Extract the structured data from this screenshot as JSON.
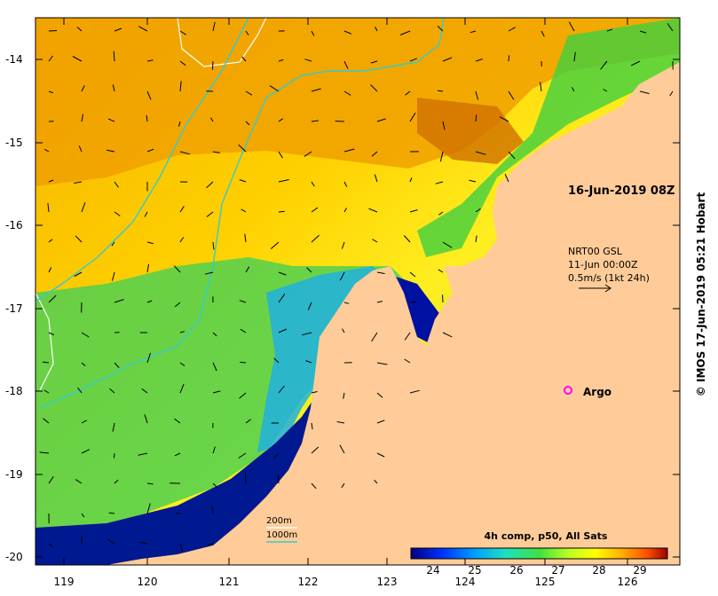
{
  "map": {
    "timestamp": "16-Jun-2019 08Z",
    "vector_legend": {
      "line1": "NRT00 GSL",
      "line2": "11-Jun 00:00Z",
      "line3": "0.5m/s (1kt 24h)"
    },
    "argo_label": "Argo",
    "depth_contours": {
      "label_200": "200m",
      "label_1000": "1000m",
      "color_200": "#ffffff",
      "color_1000": "#33cccc"
    },
    "credit": "© IMOS 17-Jun-2019 05:21 Hobart",
    "lat_ticks": [
      "-14",
      "-15",
      "-16",
      "-17",
      "-18",
      "-19",
      "-20"
    ],
    "lon_ticks": [
      "119",
      "120",
      "121",
      "122",
      "123",
      "124",
      "125",
      "126"
    ],
    "colorbar": {
      "title": "4h comp, p50, All Sats",
      "ticks": [
        "24",
        "25",
        "26",
        "27",
        "28",
        "29"
      ],
      "colors": [
        "#00007f",
        "#0040ff",
        "#00c0ff",
        "#20e0a0",
        "#80ff40",
        "#ffff00",
        "#ffc000",
        "#ff8000",
        "#e04000",
        "#a00000"
      ]
    },
    "land_color": "#ffcc99",
    "argo_color": "#ff00ff"
  },
  "chart_data": {
    "type": "heatmap",
    "title": "",
    "xlabel": "",
    "ylabel": "",
    "xlim": [
      118.6,
      126.7
    ],
    "ylim": [
      -20.1,
      -13.5
    ],
    "colorbar_range": [
      23.5,
      29.6
    ],
    "argo_float": {
      "lon": 125.3,
      "lat": -17.98
    }
  }
}
